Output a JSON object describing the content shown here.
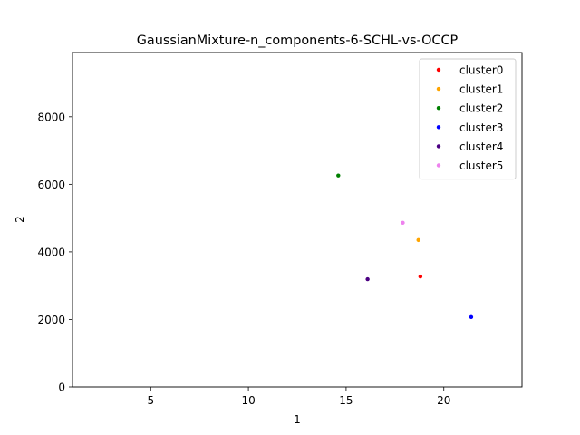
{
  "chart_data": {
    "type": "scatter",
    "title": "GaussianMixture-n_components-6-SCHL-vs-OCCP",
    "xlabel": "1",
    "ylabel": "2",
    "xlim": [
      1.0,
      24.0
    ],
    "ylim": [
      0,
      9900
    ],
    "xticks": [
      5,
      10,
      15,
      20
    ],
    "yticks": [
      0,
      2000,
      4000,
      6000,
      8000
    ],
    "grid": false,
    "legend_position": "top-right",
    "series": [
      {
        "name": "cluster0",
        "color": "#ff0000",
        "x": [
          18.8
        ],
        "y": [
          3270
        ]
      },
      {
        "name": "cluster1",
        "color": "#ffa500",
        "x": [
          18.7
        ],
        "y": [
          4350
        ]
      },
      {
        "name": "cluster2",
        "color": "#008000",
        "x": [
          14.6
        ],
        "y": [
          6260
        ]
      },
      {
        "name": "cluster3",
        "color": "#0000ff",
        "x": [
          21.4
        ],
        "y": [
          2070
        ]
      },
      {
        "name": "cluster4",
        "color": "#4b0082",
        "x": [
          16.1
        ],
        "y": [
          3190
        ]
      },
      {
        "name": "cluster5",
        "color": "#ee82ee",
        "x": [
          17.9
        ],
        "y": [
          4860
        ]
      }
    ]
  }
}
